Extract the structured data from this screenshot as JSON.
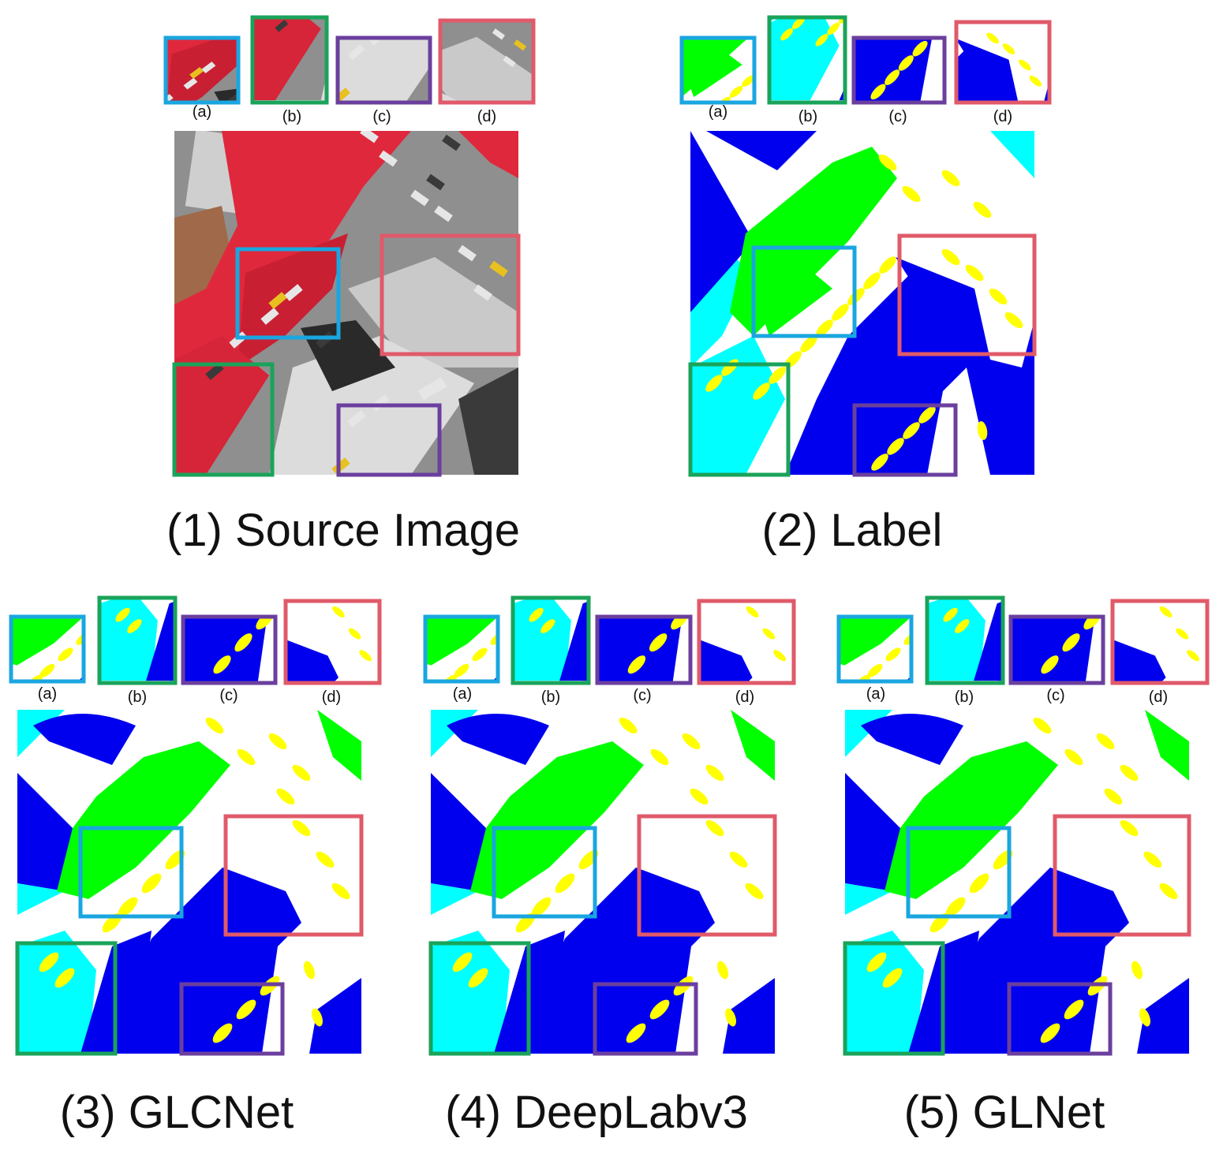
{
  "panels": [
    {
      "id": "p1",
      "caption": "(1) Source Image"
    },
    {
      "id": "p2",
      "caption": "(2) Label"
    },
    {
      "id": "p3",
      "caption": "(3) GLCNet"
    },
    {
      "id": "p4",
      "caption": "(4) DeepLabv3"
    },
    {
      "id": "p5",
      "caption": "(5) GLNet"
    }
  ],
  "crop_labels": [
    "(a)",
    "(b)",
    "(c)",
    "(d)"
  ],
  "colors": {
    "box_a": "#1aa6e0",
    "box_b": "#1aa35a",
    "box_c": "#6b3f9e",
    "box_d": "#e05a6a",
    "impervious": "#ffffff",
    "building": "#0000ee",
    "low_vegetation": "#00ffff",
    "tree": "#00ff00",
    "car": "#ffff00",
    "src_tree": "#e0283c",
    "src_road": "#8f8f8f",
    "src_roof": "#d0d0d0",
    "src_shadow": "#2a2a2a"
  }
}
